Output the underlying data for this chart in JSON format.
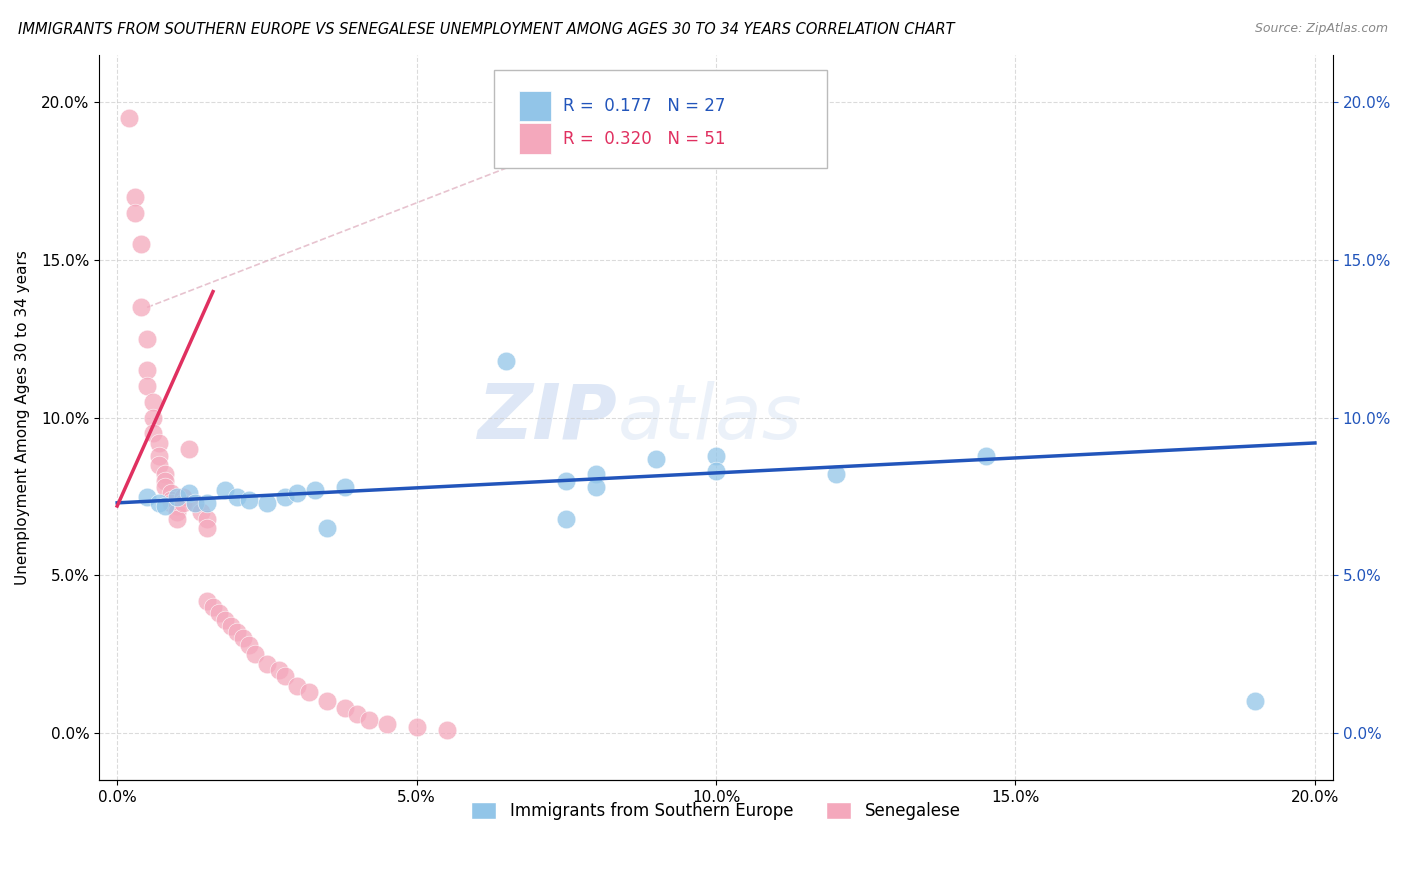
{
  "title": "IMMIGRANTS FROM SOUTHERN EUROPE VS SENEGALESE UNEMPLOYMENT AMONG AGES 30 TO 34 YEARS CORRELATION CHART",
  "source": "Source: ZipAtlas.com",
  "ylabel": "Unemployment Among Ages 30 to 34 years",
  "xlim": [
    0.0,
    0.2
  ],
  "ylim": [
    0.0,
    0.21
  ],
  "xticks": [
    0.0,
    0.05,
    0.1,
    0.15,
    0.2
  ],
  "yticks": [
    0.0,
    0.05,
    0.1,
    0.15,
    0.2
  ],
  "xticklabels": [
    "0.0%",
    "5.0%",
    "10.0%",
    "15.0%",
    "20.0%"
  ],
  "yticklabels": [
    "0.0%",
    "5.0%",
    "10.0%",
    "15.0%",
    "20.0%"
  ],
  "blue_R": 0.177,
  "blue_N": 27,
  "pink_R": 0.32,
  "pink_N": 51,
  "blue_color": "#92C5E8",
  "pink_color": "#F4A8BC",
  "blue_line_color": "#2255BB",
  "pink_line_color": "#E03060",
  "watermark": "ZIPatlas",
  "blue_scatter": [
    [
      0.005,
      0.075
    ],
    [
      0.007,
      0.073
    ],
    [
      0.008,
      0.072
    ],
    [
      0.01,
      0.075
    ],
    [
      0.012,
      0.076
    ],
    [
      0.013,
      0.073
    ],
    [
      0.015,
      0.073
    ],
    [
      0.018,
      0.077
    ],
    [
      0.02,
      0.075
    ],
    [
      0.022,
      0.074
    ],
    [
      0.025,
      0.073
    ],
    [
      0.028,
      0.075
    ],
    [
      0.03,
      0.076
    ],
    [
      0.033,
      0.077
    ],
    [
      0.035,
      0.065
    ],
    [
      0.038,
      0.078
    ],
    [
      0.065,
      0.118
    ],
    [
      0.075,
      0.08
    ],
    [
      0.075,
      0.068
    ],
    [
      0.08,
      0.082
    ],
    [
      0.08,
      0.078
    ],
    [
      0.09,
      0.087
    ],
    [
      0.1,
      0.088
    ],
    [
      0.1,
      0.083
    ],
    [
      0.12,
      0.082
    ],
    [
      0.145,
      0.088
    ],
    [
      0.19,
      0.01
    ]
  ],
  "pink_scatter": [
    [
      0.002,
      0.195
    ],
    [
      0.003,
      0.17
    ],
    [
      0.003,
      0.165
    ],
    [
      0.004,
      0.155
    ],
    [
      0.004,
      0.135
    ],
    [
      0.005,
      0.125
    ],
    [
      0.005,
      0.115
    ],
    [
      0.005,
      0.11
    ],
    [
      0.006,
      0.105
    ],
    [
      0.006,
      0.1
    ],
    [
      0.006,
      0.095
    ],
    [
      0.007,
      0.092
    ],
    [
      0.007,
      0.088
    ],
    [
      0.007,
      0.085
    ],
    [
      0.008,
      0.082
    ],
    [
      0.008,
      0.08
    ],
    [
      0.008,
      0.078
    ],
    [
      0.009,
      0.076
    ],
    [
      0.009,
      0.074
    ],
    [
      0.009,
      0.073
    ],
    [
      0.01,
      0.072
    ],
    [
      0.01,
      0.07
    ],
    [
      0.01,
      0.068
    ],
    [
      0.011,
      0.075
    ],
    [
      0.011,
      0.073
    ],
    [
      0.012,
      0.09
    ],
    [
      0.013,
      0.073
    ],
    [
      0.014,
      0.07
    ],
    [
      0.015,
      0.068
    ],
    [
      0.015,
      0.065
    ],
    [
      0.015,
      0.042
    ],
    [
      0.016,
      0.04
    ],
    [
      0.017,
      0.038
    ],
    [
      0.018,
      0.036
    ],
    [
      0.019,
      0.034
    ],
    [
      0.02,
      0.032
    ],
    [
      0.021,
      0.03
    ],
    [
      0.022,
      0.028
    ],
    [
      0.023,
      0.025
    ],
    [
      0.025,
      0.022
    ],
    [
      0.027,
      0.02
    ],
    [
      0.028,
      0.018
    ],
    [
      0.03,
      0.015
    ],
    [
      0.032,
      0.013
    ],
    [
      0.035,
      0.01
    ],
    [
      0.038,
      0.008
    ],
    [
      0.04,
      0.006
    ],
    [
      0.042,
      0.004
    ],
    [
      0.045,
      0.003
    ],
    [
      0.05,
      0.002
    ],
    [
      0.055,
      0.001
    ]
  ],
  "blue_line": [
    [
      0.0,
      0.073
    ],
    [
      0.2,
      0.092
    ]
  ],
  "pink_line": [
    [
      0.003,
      0.072
    ],
    [
      0.015,
      0.135
    ]
  ],
  "dashed_line": [
    [
      0.005,
      0.145
    ],
    [
      0.085,
      0.205
    ]
  ]
}
